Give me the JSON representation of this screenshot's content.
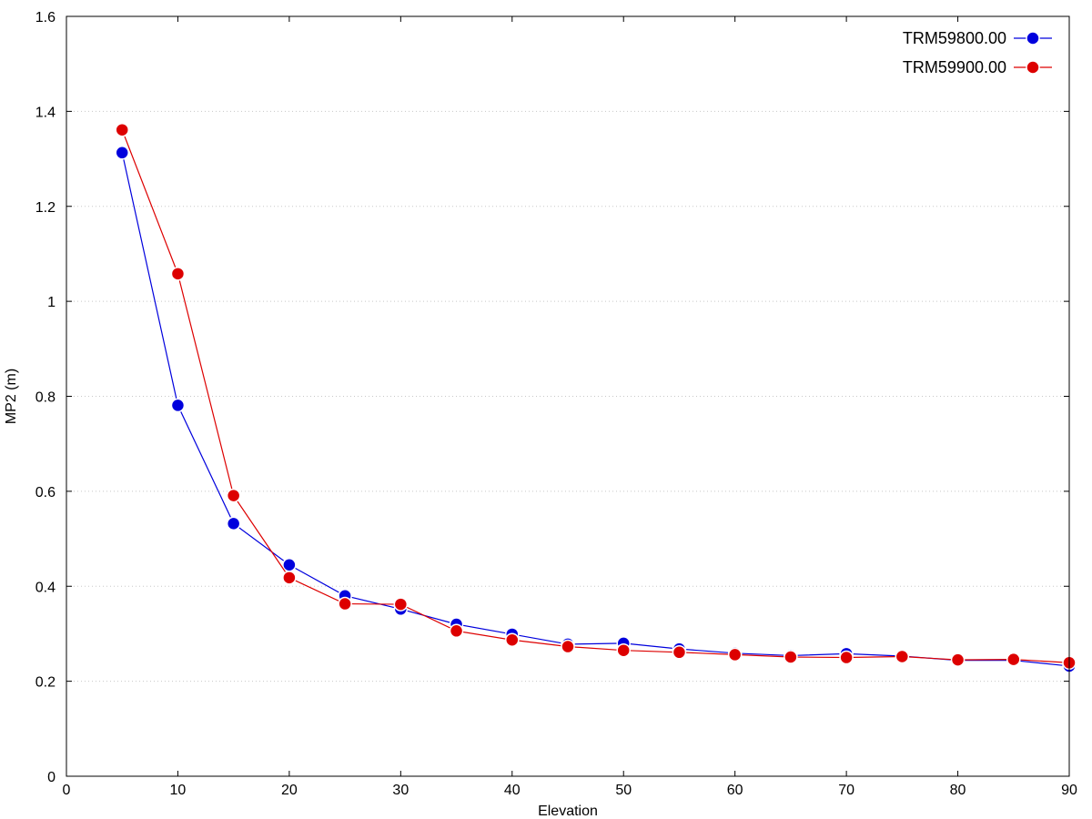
{
  "chart_data": {
    "type": "line",
    "title": "",
    "xlabel": "Elevation",
    "ylabel": "MP2 (m)",
    "xlim": [
      0,
      90
    ],
    "ylim": [
      0,
      1.6
    ],
    "xticks": [
      "0",
      "10",
      "20",
      "30",
      "40",
      "50",
      "60",
      "70",
      "80",
      "90"
    ],
    "yticks": [
      "0",
      "0.2",
      "0.4",
      "0.6",
      "0.8",
      "1",
      "1.2",
      "1.4",
      "1.6"
    ],
    "grid": "horizontal-dotted",
    "legend_position": "top-right",
    "x": [
      5,
      10,
      15,
      20,
      25,
      30,
      35,
      40,
      45,
      50,
      55,
      60,
      65,
      70,
      75,
      80,
      85,
      90
    ],
    "series": [
      {
        "name": "TRM59800.00",
        "color": "#0000dd",
        "values": [
          1.313,
          0.781,
          0.532,
          0.445,
          0.38,
          0.352,
          0.32,
          0.299,
          0.278,
          0.28,
          0.268,
          0.259,
          0.254,
          0.258,
          0.253,
          0.244,
          0.244,
          0.232
        ]
      },
      {
        "name": "TRM59900.00",
        "color": "#dd0000",
        "values": [
          1.361,
          1.058,
          0.591,
          0.418,
          0.363,
          0.362,
          0.306,
          0.287,
          0.273,
          0.265,
          0.261,
          0.256,
          0.251,
          0.25,
          0.252,
          0.245,
          0.246,
          0.239
        ]
      }
    ]
  }
}
